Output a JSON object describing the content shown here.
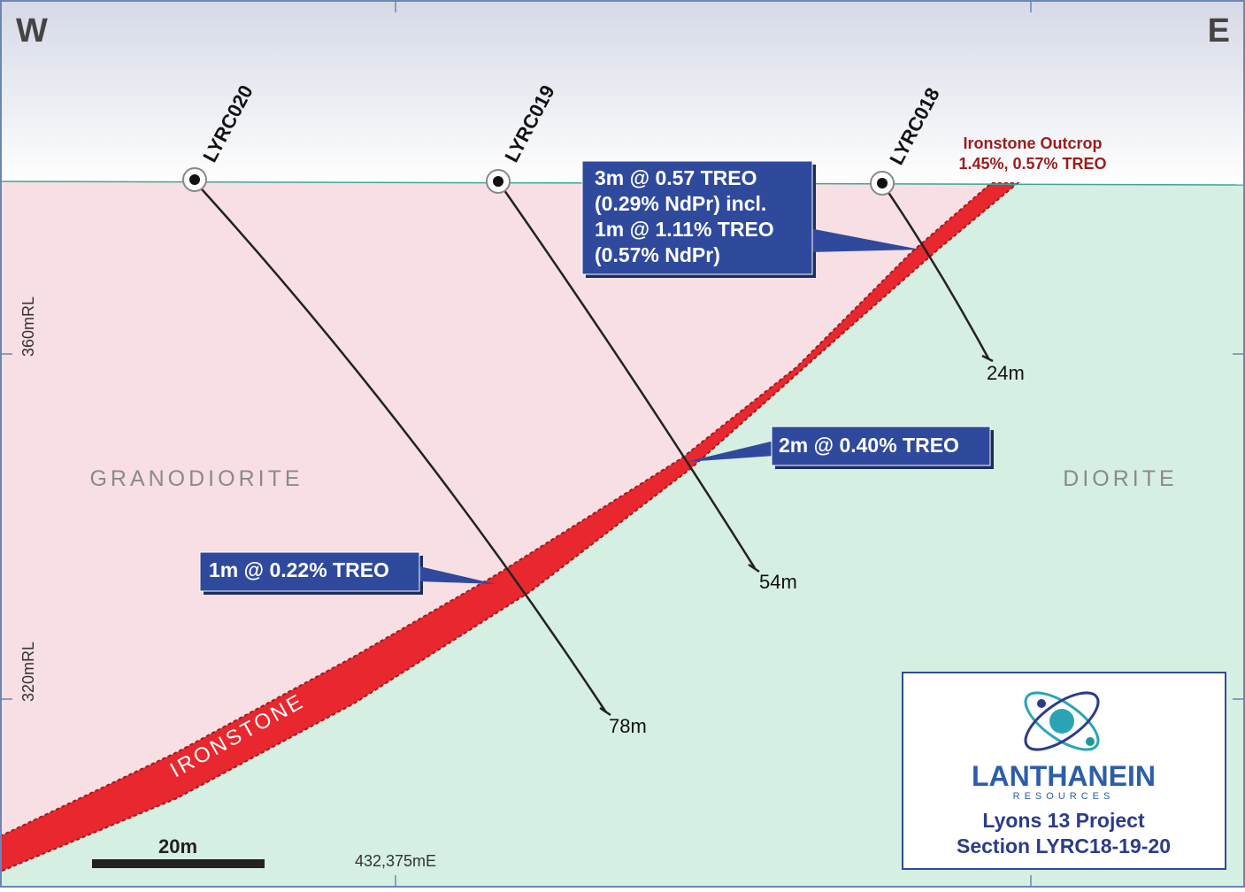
{
  "compass": {
    "west": "W",
    "east": "E"
  },
  "drillholes": [
    {
      "name": "LYRC020",
      "depth": "78m"
    },
    {
      "name": "LYRC019",
      "depth": "54m"
    },
    {
      "name": "LYRC018",
      "depth": "24m"
    }
  ],
  "rl_labels": [
    "360mRL",
    "320mRL"
  ],
  "units": {
    "left": "GRANODIORITE",
    "right": "DIORITE",
    "band": "IRONSTONE"
  },
  "outcrop": {
    "title": "Ironstone Outcrop",
    "assay": "1.45%, 0.57% TREO"
  },
  "intercepts": [
    {
      "lines": [
        "3m @ 0.57 TREO",
        "(0.29% NdPr) incl.",
        "1m @ 1.11% TREO",
        "(0.57% NdPr)"
      ]
    },
    {
      "lines": [
        "2m @ 0.40% TREO"
      ]
    },
    {
      "lines": [
        "1m @ 0.22% TREO"
      ]
    }
  ],
  "scale_bar": "20m",
  "easting": "432,375mE",
  "logo": {
    "name": "LANTHANEIN",
    "sub": "RESOURCES"
  },
  "project": [
    "Lyons 13 Project",
    "Section LYRC18-19-20"
  ]
}
